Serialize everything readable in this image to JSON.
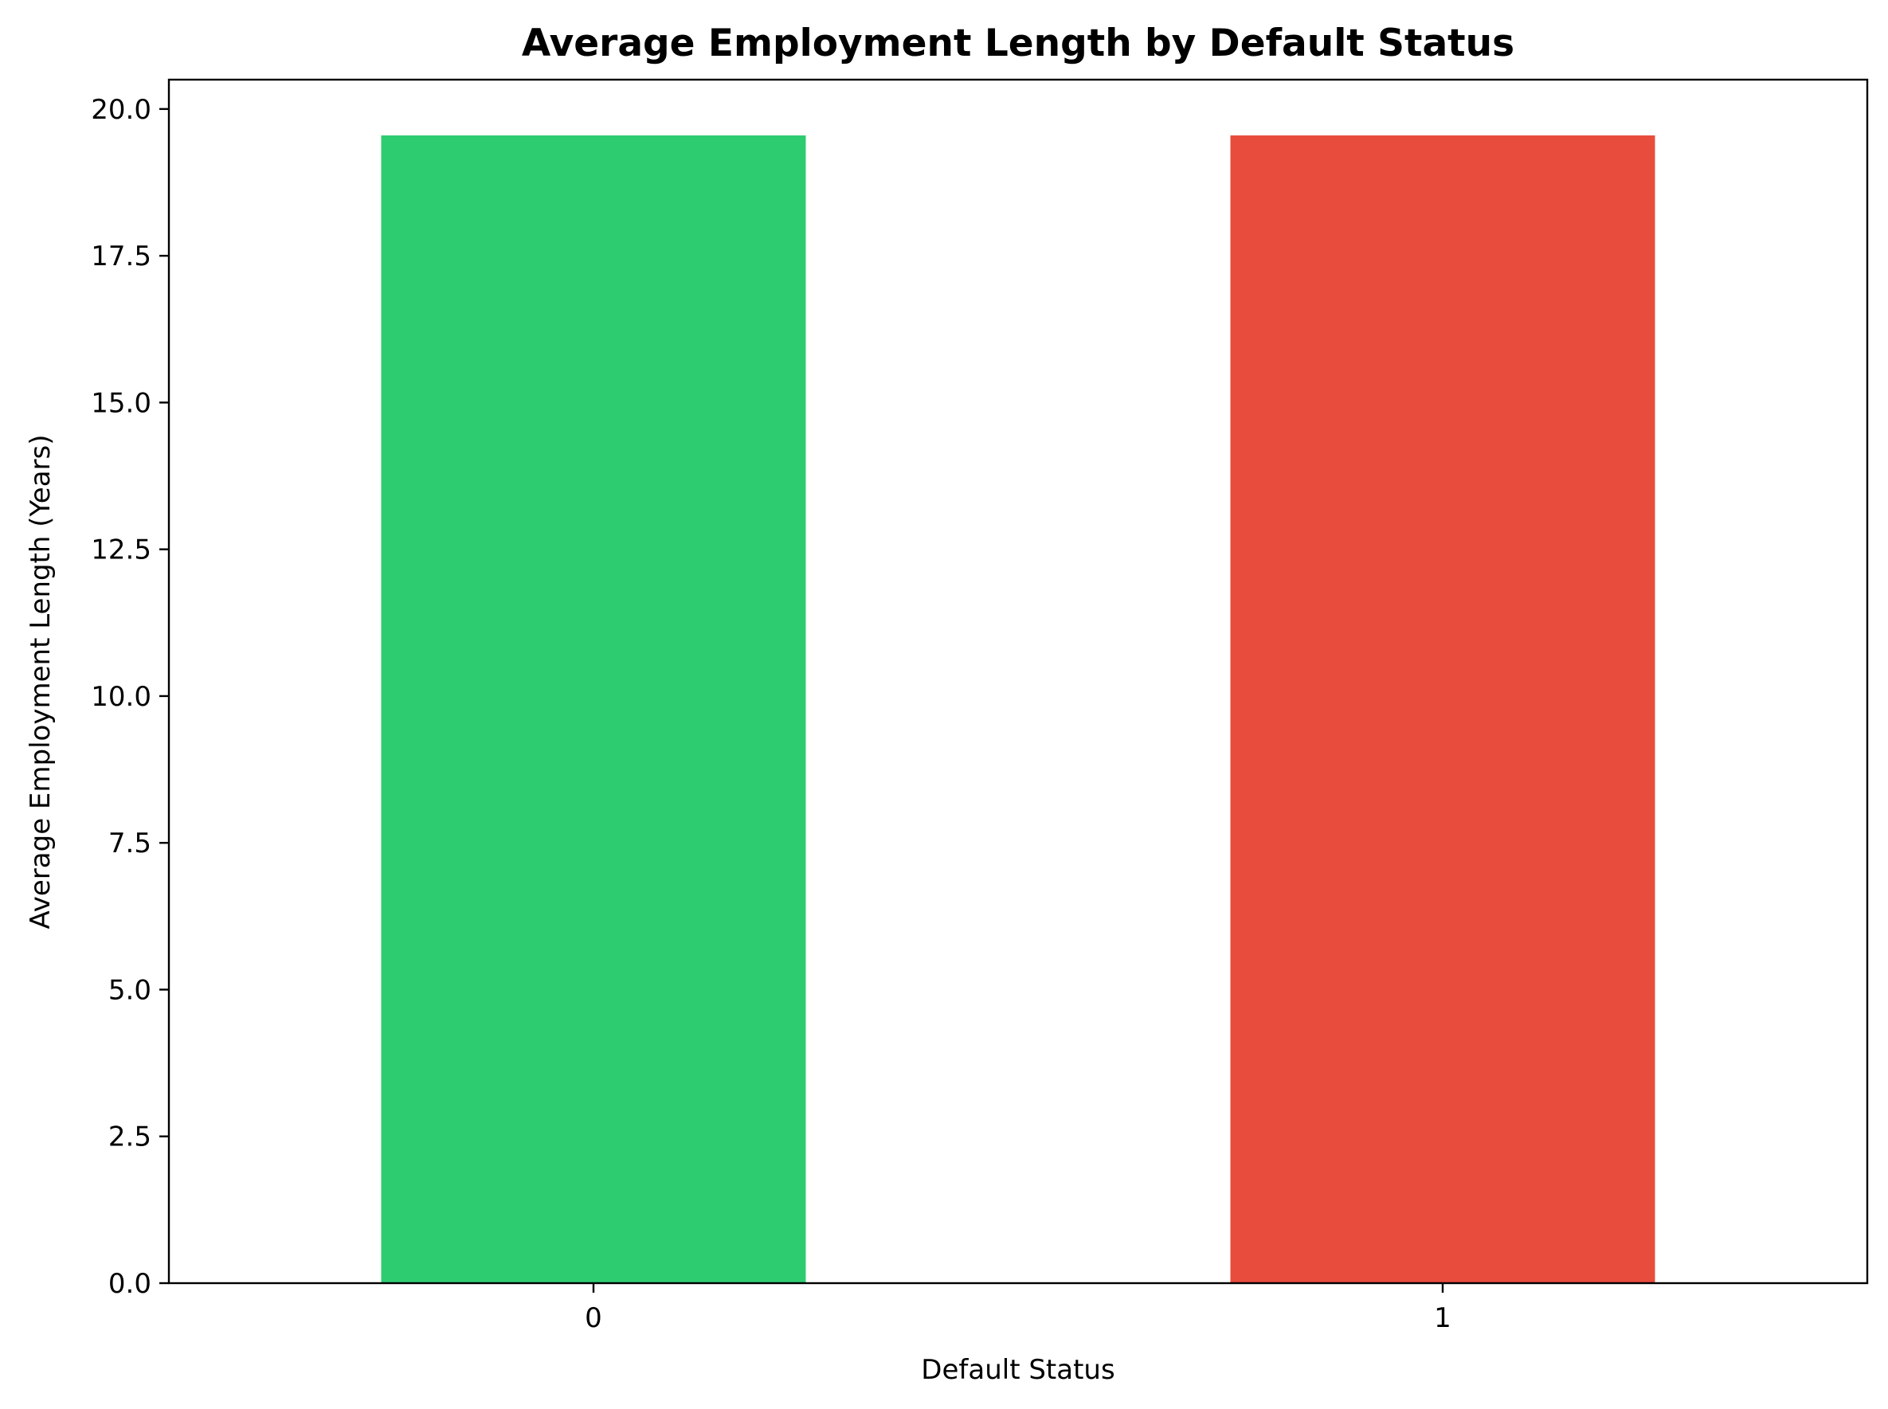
{
  "chart_data": {
    "type": "bar",
    "title": "Average Employment Length by Default Status",
    "xlabel": "Default Status",
    "ylabel": "Average Employment Length (Years)",
    "categories": [
      "0",
      "1"
    ],
    "values": [
      19.55,
      19.55
    ],
    "colors": [
      "#2ecc71",
      "#e74c3c"
    ],
    "ylim": [
      0,
      20.5
    ],
    "yticks": [
      "0.0",
      "2.5",
      "5.0",
      "7.5",
      "10.0",
      "12.5",
      "15.0",
      "17.5",
      "20.0"
    ],
    "grid": false,
    "legend": false
  }
}
